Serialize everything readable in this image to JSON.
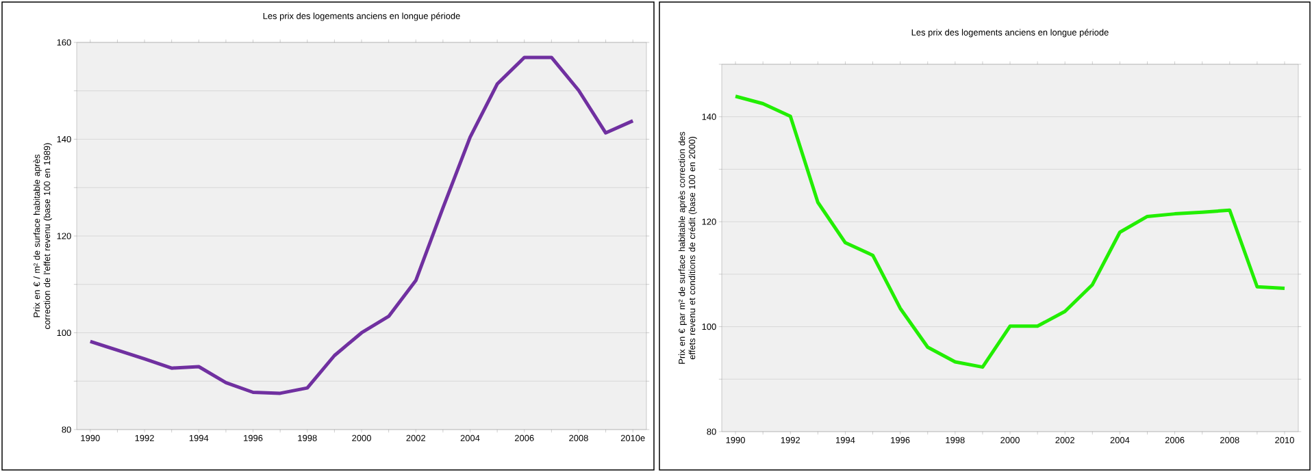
{
  "chart_data": [
    {
      "type": "line",
      "title": "Les prix des logements anciens en longue période",
      "ylabel": "Prix en € / m² de surface habitable après correction de l'effet revenu (base 100 en 1989)",
      "categories": [
        "1990",
        null,
        "1992",
        null,
        "1994",
        null,
        "1996",
        null,
        "1998",
        null,
        "2000",
        null,
        "2002",
        null,
        "2004",
        null,
        "2006",
        null,
        "2008",
        null,
        "2010e"
      ],
      "series": [
        {
          "color": "#7030a0",
          "values": [
            98.2,
            96.4,
            94.6,
            92.7,
            93.0,
            89.7,
            87.7,
            87.5,
            88.6,
            95.3,
            100.0,
            103.4,
            110.8,
            125.8,
            140.4,
            151.4,
            156.9,
            156.9,
            150.1,
            141.3,
            143.8
          ]
        }
      ],
      "ylim": [
        80,
        160
      ],
      "yticks": [
        80,
        {
          "value": 90,
          "label": null
        },
        100,
        {
          "value": 110,
          "label": null
        },
        120,
        {
          "value": 130,
          "label": null
        },
        140,
        {
          "value": 150,
          "label": null
        },
        160
      ],
      "grid": "y"
    },
    {
      "type": "line",
      "title": "Les prix des logements anciens en longue période",
      "ylabel": "Prix en € par m² de surface habitable après correction des effets revenu et conditions de crédit (base 100 en 2000)",
      "categories": [
        "1990",
        null,
        "1992",
        null,
        "1994",
        null,
        "1996",
        null,
        "1998",
        null,
        "2000",
        null,
        "2002",
        null,
        "2004",
        null,
        "2006",
        null,
        "2008",
        null,
        "2010"
      ],
      "series": [
        {
          "color": "#22ee00",
          "values": [
            143.9,
            142.5,
            140.1,
            123.7,
            116.0,
            113.6,
            103.5,
            96.1,
            93.3,
            92.3,
            100.1,
            100.1,
            102.9,
            108.0,
            118.0,
            121.0,
            121.5,
            121.8,
            122.2,
            107.6,
            107.3
          ]
        }
      ],
      "ylim": [
        80,
        150
      ],
      "yticks": [
        80,
        {
          "value": 90,
          "label": null
        },
        100,
        {
          "value": 110,
          "label": null
        },
        120,
        {
          "value": 130,
          "label": null
        },
        140,
        {
          "value": 150,
          "label": null
        }
      ],
      "grid": "y"
    }
  ]
}
